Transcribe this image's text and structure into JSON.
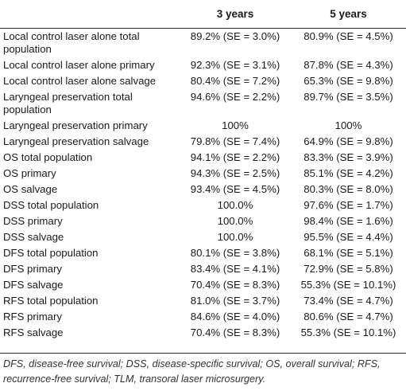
{
  "table": {
    "columns": [
      "",
      "3 years",
      "5 years"
    ],
    "rows": [
      {
        "label": "Local control laser alone total population",
        "y3": "89.2% (SE = 3.0%)",
        "y5": "80.9% (SE = 4.5%)"
      },
      {
        "label": "Local control laser alone primary",
        "y3": "92.3% (SE = 3.1%)",
        "y5": "87.8% (SE = 4.3%)"
      },
      {
        "label": "Local control laser alone salvage",
        "y3": "80.4% (SE = 7.2%)",
        "y5": "65.3% (SE = 9.8%)"
      },
      {
        "label": "Laryngeal preservation total population",
        "y3": "94.6% (SE = 2.2%)",
        "y5": "89.7% (SE = 3.5%)"
      },
      {
        "label": "Laryngeal preservation primary",
        "y3": "100%",
        "y5": "100%"
      },
      {
        "label": "Laryngeal preservation salvage",
        "y3": "79.8% (SE = 7.4%)",
        "y5": "64.9% (SE = 9.8%)"
      },
      {
        "label": "OS total population",
        "y3": "94.1% (SE = 2.2%)",
        "y5": "83.3% (SE = 3.9%)"
      },
      {
        "label": "OS primary",
        "y3": "94.3% (SE = 2.5%)",
        "y5": "85.1% (SE = 4.2%)"
      },
      {
        "label": "OS salvage",
        "y3": "93.4% (SE = 4.5%)",
        "y5": "80.3% (SE = 8.0%)"
      },
      {
        "label": "DSS total population",
        "y3": "100.0%",
        "y5": "97.6% (SE = 1.7%)"
      },
      {
        "label": "DSS primary",
        "y3": "100.0%",
        "y5": "98.4% (SE = 1.6%)"
      },
      {
        "label": "DSS salvage",
        "y3": "100.0%",
        "y5": "95.5% (SE = 4.4%)"
      },
      {
        "label": "DFS total population",
        "y3": "80.1% (SE = 3.8%)",
        "y5": "68.1% (SE = 5.1%)"
      },
      {
        "label": "DFS primary",
        "y3": "83.4% (SE = 4.1%)",
        "y5": "72.9% (SE = 5.8%)"
      },
      {
        "label": "DFS salvage",
        "y3": "70.4% (SE = 8.3%)",
        "y5": "55.3% (SE = 10.1%)"
      },
      {
        "label": "RFS total population",
        "y3": "81.0% (SE = 3.7%)",
        "y5": "73.4% (SE = 4.7%)"
      },
      {
        "label": "RFS primary",
        "y3": "84.6% (SE = 4.0%)",
        "y5": "80.6% (SE = 4.7%)"
      },
      {
        "label": "RFS salvage",
        "y3": "70.4% (SE = 8.3%)",
        "y5": "55.3% (SE = 10.1%)"
      }
    ]
  },
  "footnote": "DFS, disease-free survival; DSS, disease-specific survival; OS, overall survival; RFS, recurrence-free survival; TLM, transoral laser microsurgery."
}
